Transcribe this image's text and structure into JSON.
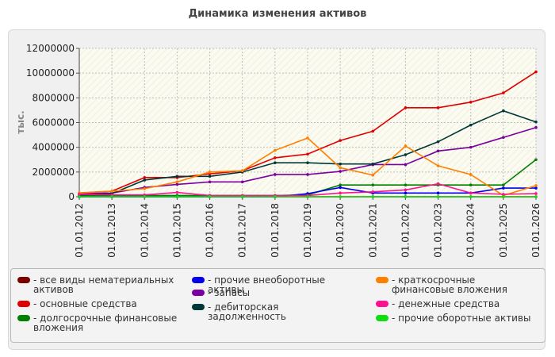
{
  "chart_data": {
    "type": "line",
    "title": "Динамика изменения активов",
    "ylabel": "тыс.",
    "xlabel": "",
    "ylim": [
      0,
      12000000
    ],
    "yticks": [
      0,
      2000000,
      4000000,
      6000000,
      8000000,
      10000000,
      12000000
    ],
    "ytick_labels": [
      "0",
      "2000000",
      "4000000",
      "6000000",
      "8000000",
      "10000000",
      "12000000"
    ],
    "categories": [
      "01.01.2012",
      "01.01.2013",
      "01.01.2014",
      "01.01.2015",
      "01.01.2016",
      "01.01.2017",
      "01.01.2018",
      "01.01.2019",
      "01.01.2020",
      "01.01.2021",
      "01.01.2022",
      "01.01.2023",
      "01.01.2024",
      "01.01.2025",
      "01.01.2026"
    ],
    "grid": true,
    "legend_position": "bottom",
    "series": [
      {
        "name": "все виды нематериальных активов",
        "color": "#7a0000",
        "values": [
          0,
          0,
          0,
          0,
          0,
          0,
          0,
          0,
          0,
          0,
          0,
          0,
          0,
          0,
          0
        ]
      },
      {
        "name": "основные средства",
        "color": "#e00000",
        "values": [
          300000,
          450000,
          1550000,
          1550000,
          1850000,
          2100000,
          3150000,
          3450000,
          4550000,
          5300000,
          7200000,
          7200000,
          7650000,
          8400000,
          10100000
        ]
      },
      {
        "name": "долгосрочные финансовые вложения",
        "color": "#008000",
        "values": [
          100000,
          100000,
          100000,
          100000,
          100000,
          100000,
          100000,
          150000,
          950000,
          950000,
          950000,
          950000,
          950000,
          950000,
          3000000
        ]
      },
      {
        "name": "прочие внеоборотные активы",
        "color": "#0000ee",
        "values": [
          0,
          0,
          0,
          0,
          0,
          0,
          0,
          250000,
          750000,
          300000,
          300000,
          300000,
          300000,
          700000,
          700000
        ]
      },
      {
        "name": "запасы",
        "color": "#7a00a0",
        "values": [
          250000,
          300000,
          750000,
          1000000,
          1200000,
          1200000,
          1800000,
          1800000,
          2050000,
          2600000,
          2600000,
          3700000,
          4000000,
          4800000,
          5600000
        ]
      },
      {
        "name": "дебиторская задолженность",
        "color": "#003838",
        "values": [
          150000,
          250000,
          1350000,
          1650000,
          1650000,
          2000000,
          2750000,
          2750000,
          2650000,
          2650000,
          3400000,
          4450000,
          5800000,
          6950000,
          6050000
        ]
      },
      {
        "name": "краткосрочные финансовые вложения",
        "color": "#ff8000",
        "values": [
          300000,
          450000,
          650000,
          1200000,
          2000000,
          2100000,
          3750000,
          4750000,
          2350000,
          1750000,
          4100000,
          2500000,
          1800000,
          100000,
          900000
        ]
      },
      {
        "name": "денежные средства",
        "color": "#ff1090",
        "values": [
          200000,
          150000,
          150000,
          350000,
          100000,
          100000,
          100000,
          100000,
          300000,
          400000,
          550000,
          1050000,
          300000,
          200000,
          250000
        ]
      },
      {
        "name": "прочие оборотные активы",
        "color": "#10dd10",
        "values": [
          0,
          0,
          0,
          0,
          0,
          0,
          0,
          0,
          0,
          0,
          0,
          0,
          0,
          0,
          0
        ]
      }
    ]
  }
}
